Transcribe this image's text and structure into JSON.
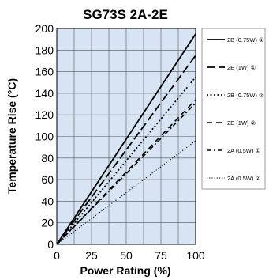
{
  "chart_data": {
    "type": "line",
    "title": "SG73S 2A-2E",
    "xlabel": "Power Rating (%)",
    "ylabel": "Temperature Rise (°C)",
    "xlim": [
      0,
      100
    ],
    "ylim": [
      0,
      200
    ],
    "x_ticks": [
      "0",
      "25",
      "50",
      "75",
      "100"
    ],
    "y_ticks": [
      "0",
      "20",
      "40",
      "60",
      "80",
      "100",
      "120",
      "140",
      "160",
      "180",
      "200"
    ],
    "grid": true,
    "legend_position": "right",
    "plot_background": "#d6e4f3",
    "series": [
      {
        "name": "2B (0.75W) ①",
        "style": "solid",
        "x": [
          0,
          100
        ],
        "y": [
          0,
          195
        ]
      },
      {
        "name": "2E (1W) ①",
        "style": "long-dash",
        "x": [
          0,
          100
        ],
        "y": [
          0,
          175
        ]
      },
      {
        "name": "2B (0.75W) ②",
        "style": "dotted",
        "x": [
          0,
          100
        ],
        "y": [
          0,
          155
        ]
      },
      {
        "name": "2E (1W) ②",
        "style": "dash",
        "x": [
          0,
          100
        ],
        "y": [
          0,
          134
        ]
      },
      {
        "name": "2A (0.5W) ①",
        "style": "dash-dot",
        "x": [
          0,
          100
        ],
        "y": [
          0,
          131
        ]
      },
      {
        "name": "2A (0.5W) ②",
        "style": "fine-dot",
        "x": [
          0,
          100
        ],
        "y": [
          0,
          96
        ]
      }
    ]
  }
}
